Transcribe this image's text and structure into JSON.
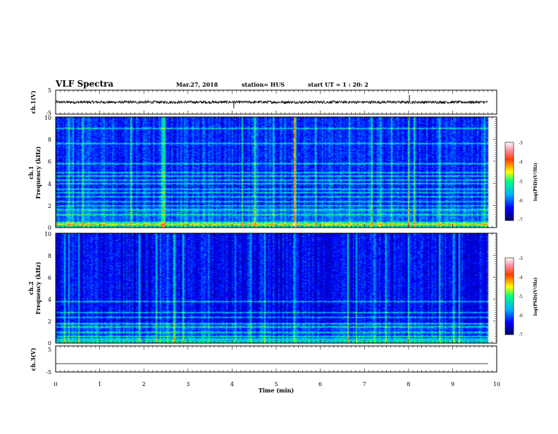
{
  "header": {
    "title": "VLF Spectra",
    "date": "Mar.27, 2018",
    "station": "station= HUS",
    "start_ut": "start UT =  1 : 20: 2"
  },
  "chart_data": [
    {
      "type": "line",
      "name": "ch1_waveform",
      "ylabel": "ch.1(V)",
      "ylim": [
        -5,
        5
      ],
      "yticks": [
        "5",
        "-5"
      ],
      "xlim": [
        0,
        10
      ],
      "trace": {
        "baseline": 0,
        "noise_amplitude": 0.6,
        "x_end": 9.8,
        "spikes": [
          {
            "x": 4.04,
            "y": -2.5
          },
          {
            "x": 8.02,
            "y": 3.0
          }
        ]
      }
    },
    {
      "type": "heatmap",
      "name": "ch1_spectrogram",
      "ylabel_top": "ch.1",
      "ylabel": "Frequency (kHz)",
      "ylim": [
        0,
        10
      ],
      "yticks": [
        "0",
        "2",
        "4",
        "6",
        "8",
        "10"
      ],
      "xlim": [
        0,
        10
      ],
      "x_end": 9.8,
      "horizontal_lines_khz": [
        0.3,
        0.5,
        1.2,
        1.6,
        2.0,
        2.4,
        2.8,
        3.2,
        3.5,
        4.0,
        4.3,
        4.7,
        5.0,
        5.8,
        7.6,
        9.0
      ],
      "strong_vertical_lines_min": [
        0.3,
        0.6,
        1.7,
        2.4,
        4.5,
        5.4,
        7.6,
        8.0,
        8.7
      ],
      "colorbar": {
        "label": "log(PSD)(V²/Hz)",
        "ticks": [
          "-3",
          "-4",
          "-5",
          "-6",
          "-7"
        ],
        "range": [
          -7,
          -3
        ]
      }
    },
    {
      "type": "heatmap",
      "name": "ch2_spectrogram",
      "ylabel_top": "ch.2",
      "ylabel": "Frequency (kHz)",
      "ylim": [
        0,
        10
      ],
      "yticks": [
        "0",
        "2",
        "4",
        "6",
        "8",
        "10"
      ],
      "xlim": [
        0,
        10
      ],
      "x_end": 9.8,
      "horizontal_lines_khz": [
        0.6,
        1.0,
        1.5,
        1.8,
        2.4,
        2.8,
        3.8
      ],
      "strong_vertical_lines_min": [
        0.2,
        0.3,
        1.9,
        5.4,
        6.6,
        6.8,
        8.0,
        8.7
      ],
      "colorbar": {
        "label": "log(PSD)(V²/Hz)",
        "ticks": [
          "-3",
          "-4",
          "-5",
          "-6",
          "-7"
        ],
        "range": [
          -7,
          -3
        ]
      }
    },
    {
      "type": "line",
      "name": "ch3_waveform",
      "ylabel": "ch.3(V)",
      "ylim": [
        -5,
        5
      ],
      "yticks": [
        "5",
        "-5"
      ],
      "xlim": [
        0,
        10
      ],
      "trace": {
        "baseline": -1.8,
        "noise_amplitude": 0,
        "x_end": 9.8
      }
    }
  ],
  "x_axis": {
    "label": "Time (min)",
    "ticks": [
      "0",
      "1",
      "2",
      "3",
      "4",
      "5",
      "6",
      "7",
      "8",
      "9",
      "10"
    ]
  }
}
